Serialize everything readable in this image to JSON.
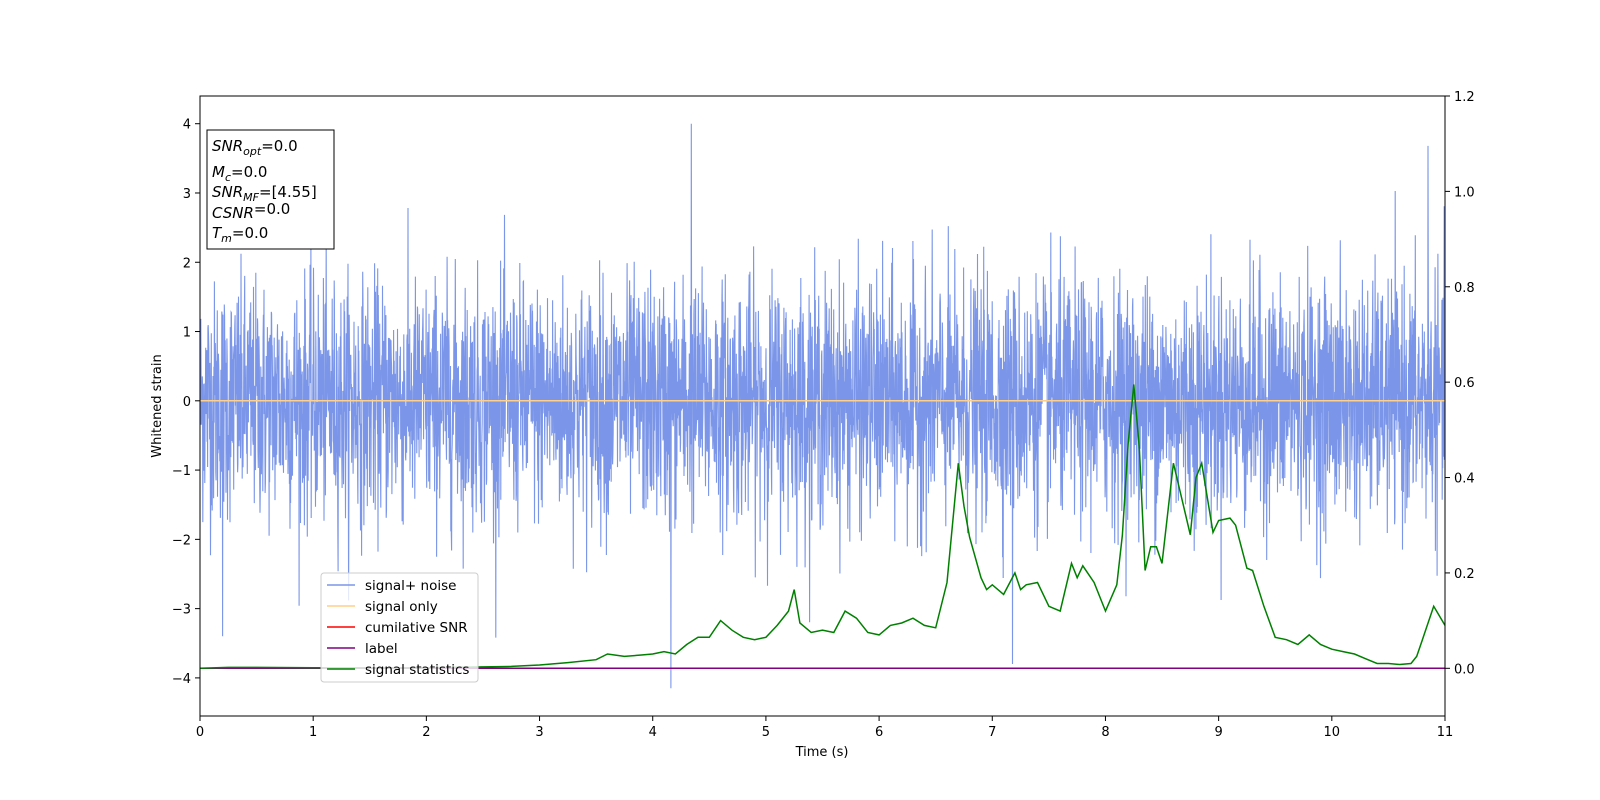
{
  "chart_data": {
    "type": "line",
    "xlabel": "Time (s)",
    "ylabel": "Whitened strain",
    "xlim": [
      0,
      11
    ],
    "ylim": [
      -4.55,
      4.4
    ],
    "y2lim": [
      -0.1,
      1.2
    ],
    "xticks": [
      0,
      1,
      2,
      3,
      4,
      5,
      6,
      7,
      8,
      9,
      10,
      11
    ],
    "yticks": [
      -4,
      -3,
      -2,
      -1,
      0,
      1,
      2,
      3,
      4
    ],
    "y2ticks": [
      0.0,
      0.2,
      0.4,
      0.6,
      0.8,
      1.0,
      1.2
    ],
    "y2tick_labels": [
      "0.0",
      "0.2",
      "0.4",
      "0.6",
      "0.8",
      "1.0",
      "1.2"
    ],
    "grid": false,
    "legend": {
      "position": "lower-left",
      "entries": [
        {
          "label": "signal+ noise",
          "color": "#7b96e8"
        },
        {
          "label": "signal only",
          "color": "#ffd08a"
        },
        {
          "label": "cumilative SNR",
          "color": "#ff0000"
        },
        {
          "label": "label",
          "color": "#800080"
        },
        {
          "label": "signal statistics",
          "color": "#008000"
        }
      ]
    },
    "info_box": [
      {
        "var": "SNR",
        "sub": "opt",
        "text": "=0.0"
      },
      {
        "var": "M",
        "sub": "c",
        "text": "=0.0"
      },
      {
        "var": "SNR",
        "sub": "MF",
        "text": "=[4.55]"
      },
      {
        "var": "CSNR",
        "sub": "",
        "text": "=0.0"
      },
      {
        "var": "T",
        "sub": "m",
        "text": "=0.0"
      }
    ],
    "series": [
      {
        "name": "signal+ noise",
        "axis": "left",
        "color": "#7b96e8",
        "x_range": [
          0,
          11
        ],
        "samples": 4400,
        "noise_std": 0.85,
        "extremes": [
          {
            "x": 4.16,
            "y": -4.15
          },
          {
            "x": 4.34,
            "y": 4.0
          },
          {
            "x": 10.85,
            "y": 3.68
          },
          {
            "x": 7.18,
            "y": -3.8
          },
          {
            "x": 0.2,
            "y": -3.4
          }
        ]
      },
      {
        "name": "signal only",
        "axis": "left",
        "color": "#ffd08a",
        "x": [
          0,
          11
        ],
        "y": [
          0,
          0
        ]
      },
      {
        "name": "label",
        "axis": "right",
        "color": "#800080",
        "x": [
          0,
          11
        ],
        "y": [
          0,
          0
        ]
      },
      {
        "name": "signal statistics",
        "axis": "right",
        "color": "#008000",
        "x": [
          0,
          0.25,
          0.5,
          1.0,
          1.5,
          2.0,
          2.5,
          2.75,
          3.0,
          3.25,
          3.5,
          3.6,
          3.75,
          3.9,
          4.0,
          4.1,
          4.2,
          4.3,
          4.4,
          4.5,
          4.6,
          4.7,
          4.8,
          4.9,
          5.0,
          5.1,
          5.2,
          5.25,
          5.3,
          5.4,
          5.5,
          5.6,
          5.7,
          5.8,
          5.9,
          6.0,
          6.1,
          6.2,
          6.3,
          6.4,
          6.5,
          6.6,
          6.7,
          6.75,
          6.8,
          6.9,
          6.95,
          7.0,
          7.1,
          7.2,
          7.25,
          7.3,
          7.4,
          7.5,
          7.6,
          7.7,
          7.75,
          7.8,
          7.9,
          8.0,
          8.1,
          8.15,
          8.2,
          8.25,
          8.3,
          8.35,
          8.4,
          8.45,
          8.5,
          8.6,
          8.7,
          8.75,
          8.8,
          8.85,
          8.95,
          9.0,
          9.1,
          9.15,
          9.25,
          9.3,
          9.4,
          9.5,
          9.6,
          9.7,
          9.8,
          9.9,
          10.0,
          10.1,
          10.2,
          10.3,
          10.4,
          10.5,
          10.6,
          10.7,
          10.75,
          10.8,
          10.9,
          11.0
        ],
        "y": [
          0.0,
          0.002,
          0.002,
          0.001,
          0.001,
          0.001,
          0.003,
          0.004,
          0.007,
          0.012,
          0.018,
          0.03,
          0.025,
          0.028,
          0.03,
          0.035,
          0.03,
          0.05,
          0.065,
          0.065,
          0.1,
          0.08,
          0.065,
          0.06,
          0.065,
          0.09,
          0.12,
          0.165,
          0.095,
          0.075,
          0.08,
          0.075,
          0.12,
          0.105,
          0.075,
          0.07,
          0.09,
          0.095,
          0.105,
          0.09,
          0.085,
          0.18,
          0.43,
          0.34,
          0.275,
          0.19,
          0.165,
          0.175,
          0.155,
          0.2,
          0.165,
          0.175,
          0.18,
          0.13,
          0.12,
          0.22,
          0.19,
          0.215,
          0.18,
          0.12,
          0.175,
          0.28,
          0.47,
          0.595,
          0.46,
          0.205,
          0.255,
          0.255,
          0.22,
          0.43,
          0.33,
          0.28,
          0.4,
          0.43,
          0.285,
          0.31,
          0.315,
          0.3,
          0.21,
          0.205,
          0.13,
          0.065,
          0.06,
          0.05,
          0.07,
          0.05,
          0.04,
          0.035,
          0.03,
          0.02,
          0.01,
          0.01,
          0.008,
          0.01,
          0.025,
          0.06,
          0.13,
          0.09
        ]
      }
    ]
  }
}
